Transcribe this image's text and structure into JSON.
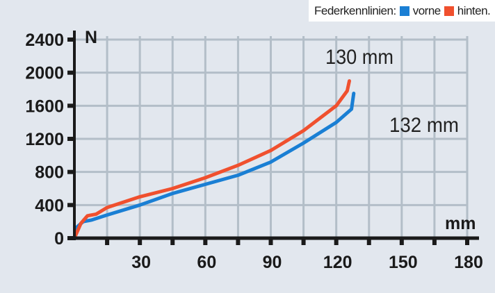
{
  "chart_data": {
    "type": "line",
    "title": "",
    "xlabel": "mm",
    "ylabel": "N",
    "xlim": [
      0,
      180
    ],
    "ylim": [
      0,
      2400
    ],
    "x_ticks": [
      30,
      60,
      90,
      120,
      150,
      180
    ],
    "y_ticks": [
      0,
      400,
      800,
      1200,
      1600,
      2000,
      2400
    ],
    "grid": true,
    "legend": {
      "title": "Federkennlinien:",
      "placement": "top-right"
    },
    "series": [
      {
        "name": "vorne",
        "color": "#1a7fd4",
        "x": [
          0,
          1,
          4,
          8,
          15,
          30,
          45,
          60,
          75,
          90,
          105,
          120,
          127,
          128
        ],
        "y": [
          0,
          130,
          200,
          220,
          280,
          400,
          540,
          650,
          760,
          920,
          1150,
          1400,
          1560,
          1750
        ]
      },
      {
        "name": "hinten.",
        "color": "#f0502e",
        "x": [
          0,
          3,
          6,
          10,
          15,
          30,
          45,
          60,
          75,
          90,
          105,
          120,
          125,
          126
        ],
        "y": [
          0,
          180,
          270,
          290,
          370,
          500,
          600,
          730,
          880,
          1060,
          1300,
          1600,
          1780,
          1900
        ]
      }
    ],
    "annotations": [
      "130 mm",
      "132 mm"
    ]
  }
}
